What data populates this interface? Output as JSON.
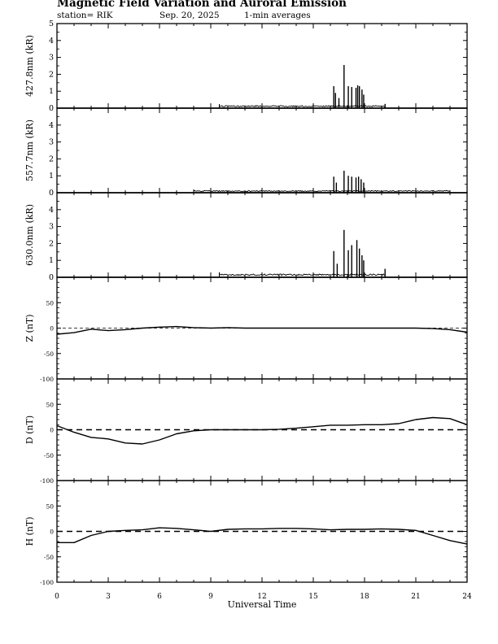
{
  "title": "Magnetic Field Variation and Auroral Emission",
  "station": "station= RIK",
  "date": "Sep. 20, 2025",
  "averaging": "1-min averages",
  "chart_data": {
    "type": "line",
    "xlabel": "Universal Time",
    "xlim": [
      0,
      24
    ],
    "xticks": [
      "0",
      "3",
      "6",
      "9",
      "12",
      "15",
      "18",
      "21",
      "24"
    ],
    "panels": [
      {
        "ylabel": "427.8nm (kR)",
        "ylim": [
          0,
          5
        ],
        "yticks": [
          "0",
          "1",
          "2",
          "3",
          "4",
          "5"
        ],
        "baseline": 0,
        "data_range": [
          9.5,
          19.2
        ],
        "background_level": 0.12,
        "spikes": [
          [
            16.2,
            1.3
          ],
          [
            16.3,
            0.9
          ],
          [
            16.5,
            0.6
          ],
          [
            16.8,
            2.55
          ],
          [
            17.05,
            1.3
          ],
          [
            17.25,
            1.25
          ],
          [
            17.5,
            1.2
          ],
          [
            17.6,
            1.35
          ],
          [
            17.7,
            1.3
          ],
          [
            17.85,
            1.1
          ],
          [
            17.95,
            0.8
          ],
          [
            19.2,
            0.25
          ]
        ]
      },
      {
        "ylabel": "557.7nm (kR)",
        "ylim": [
          0,
          5
        ],
        "yticks": [
          "0",
          "1",
          "2",
          "3",
          "4"
        ],
        "baseline": 0,
        "data_range": [
          8.0,
          23.0
        ],
        "background_level": 0.1,
        "spikes": [
          [
            16.2,
            0.95
          ],
          [
            16.35,
            0.6
          ],
          [
            16.8,
            1.3
          ],
          [
            17.05,
            1.0
          ],
          [
            17.25,
            0.95
          ],
          [
            17.5,
            0.9
          ],
          [
            17.65,
            0.95
          ],
          [
            17.8,
            0.8
          ],
          [
            17.95,
            0.6
          ]
        ]
      },
      {
        "ylabel": "630.0nm (kR)",
        "ylim": [
          0,
          5
        ],
        "yticks": [
          "0",
          "1",
          "2",
          "3",
          "4"
        ],
        "baseline": 0,
        "data_range": [
          9.5,
          19.2
        ],
        "background_level": 0.15,
        "spikes": [
          [
            16.2,
            1.55
          ],
          [
            16.4,
            0.8
          ],
          [
            16.8,
            2.8
          ],
          [
            17.05,
            1.6
          ],
          [
            17.25,
            1.9
          ],
          [
            17.55,
            2.2
          ],
          [
            17.7,
            1.7
          ],
          [
            17.85,
            1.3
          ],
          [
            17.95,
            1.0
          ],
          [
            19.2,
            0.5
          ]
        ]
      },
      {
        "ylabel": "Z (nT)",
        "ylim": [
          -100,
          100
        ],
        "yticks": [
          "50",
          "0",
          "-50",
          "-100"
        ],
        "baseline": 0,
        "x": [
          0,
          1,
          2,
          3,
          4,
          5,
          6,
          7,
          8,
          9,
          10,
          11,
          12,
          13,
          14,
          15,
          16,
          17,
          18,
          19,
          20,
          21,
          22,
          23,
          24
        ],
        "values": [
          -12,
          -9,
          -2,
          -5,
          -3,
          0,
          2,
          3,
          1,
          0,
          1,
          0,
          0,
          0,
          0,
          0,
          0,
          0,
          0,
          0,
          0,
          0,
          -1,
          -3,
          -8
        ]
      },
      {
        "ylabel": "D (nT)",
        "ylim": [
          -100,
          100
        ],
        "yticks": [
          "50",
          "0",
          "-50",
          "-100"
        ],
        "baseline": 0,
        "x": [
          0,
          1,
          2,
          3,
          4,
          5,
          6,
          7,
          8,
          9,
          10,
          11,
          12,
          13,
          14,
          15,
          16,
          17,
          18,
          19,
          20,
          21,
          22,
          23,
          24
        ],
        "values": [
          8,
          -5,
          -15,
          -18,
          -26,
          -28,
          -20,
          -8,
          -2,
          0,
          0,
          0,
          0,
          1,
          3,
          6,
          9,
          9,
          10,
          10,
          12,
          20,
          24,
          22,
          10
        ]
      },
      {
        "ylabel": "H (nT)",
        "ylim": [
          -100,
          100
        ],
        "yticks": [
          "50",
          "0",
          "-50",
          "-100"
        ],
        "baseline": 0,
        "x": [
          0,
          1,
          2,
          3,
          4,
          5,
          6,
          7,
          8,
          9,
          10,
          11,
          12,
          13,
          14,
          15,
          16,
          17,
          18,
          19,
          20,
          21,
          22,
          23,
          24
        ],
        "values": [
          -22,
          -22,
          -8,
          0,
          2,
          3,
          7,
          6,
          3,
          0,
          4,
          5,
          5,
          6,
          6,
          5,
          3,
          4,
          4,
          5,
          4,
          2,
          -8,
          -18,
          -25
        ]
      }
    ]
  }
}
